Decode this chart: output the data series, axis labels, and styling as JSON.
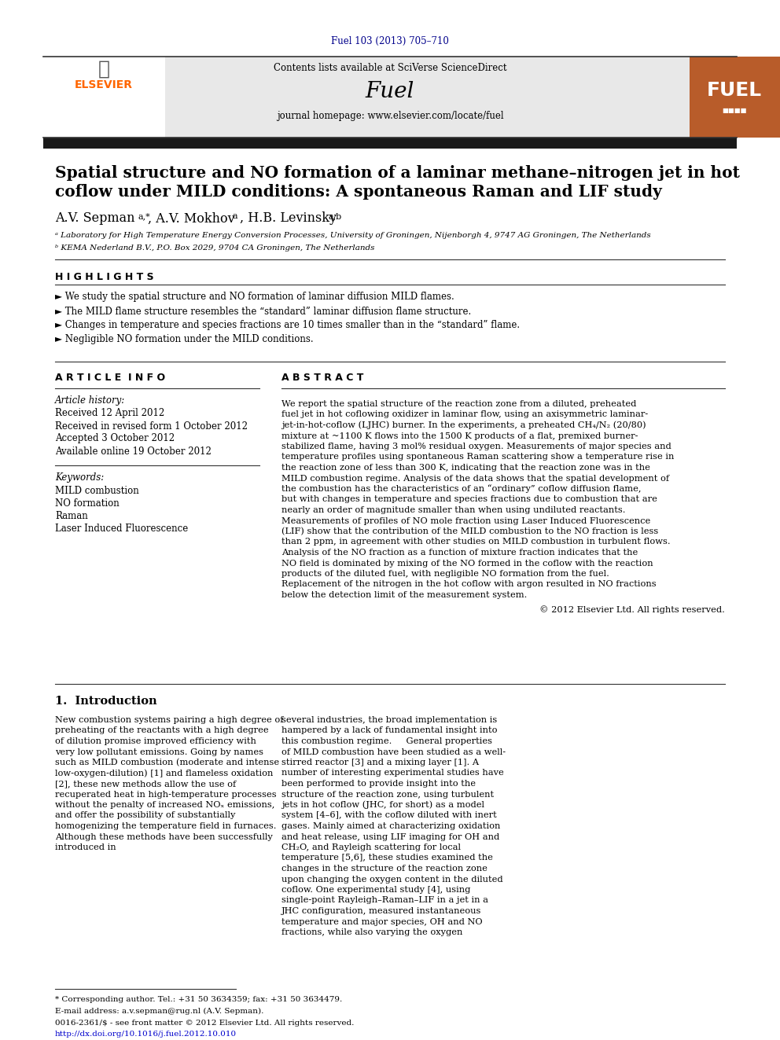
{
  "journal_ref": "Fuel 103 (2013) 705–710",
  "journal_ref_color": "#00008B",
  "header_bg": "#E8E8E8",
  "header_border_color": "#333333",
  "elsevier_color": "#FF6600",
  "fuel_journal": "Fuel",
  "contents_text": "Contents lists available at ",
  "sciverse_text": "SciVerse ScienceDirect",
  "sciverse_color": "#0000CC",
  "homepage_text": "journal homepage: www.elsevier.com/locate/fuel",
  "thick_bar_color": "#1A1A1A",
  "title": "Spatial structure and NO formation of a laminar methane–nitrogen jet in hot\ncoflow under MILD conditions: A spontaneous Raman and LIF study",
  "authors": "A.V. Sepman",
  "author_superscripts": "a,*",
  "author2": ", A.V. Mokhov",
  "author2_sup": "a",
  "author3": ", H.B. Levinsky",
  "author3_sup": "a,b",
  "affil1": "ᵃ Laboratory for High Temperature Energy Conversion Processes, University of Groningen, Nijenborgh 4, 9747 AG Groningen, The Netherlands",
  "affil2": "ᵇ KEMA Nederland B.V., P.O. Box 2029, 9704 CA Groningen, The Netherlands",
  "highlights_label": "H I G H L I G H T S",
  "highlights": [
    "We study the spatial structure and NO formation of laminar diffusion MILD flames.",
    "The MILD flame structure resembles the “standard” laminar diffusion flame structure.",
    "Changes in temperature and species fractions are 10 times smaller than in the “standard” flame.",
    "Negligible NO formation under the MILD conditions."
  ],
  "article_info_label": "A R T I C L E  I N F O",
  "abstract_label": "A B S T R A C T",
  "article_history_label": "Article history:",
  "received": "Received 12 April 2012",
  "revised": "Received in revised form 1 October 2012",
  "accepted": "Accepted 3 October 2012",
  "available": "Available online 19 October 2012",
  "keywords_label": "Keywords:",
  "keywords": [
    "MILD combustion",
    "NO formation",
    "Raman",
    "Laser Induced Fluorescence"
  ],
  "abstract_text": "We report the spatial structure of the reaction zone from a diluted, preheated fuel jet in hot coflowing oxidizer in laminar flow, using an axisymmetric laminar-jet-in-hot-coflow (LJHC) burner. In the experiments, a preheated CH₄/N₂ (20/80) mixture at ~1100 K flows into the 1500 K products of a flat, premixed burner-stabilized flame, having 3 mol% residual oxygen. Measurements of major species and temperature profiles using spontaneous Raman scattering show a temperature rise in the reaction zone of less than 300 K, indicating that the reaction zone was in the MILD combustion regime. Analysis of the data shows that the spatial development of the combustion has the characteristics of an “ordinary” coflow diffusion flame, but with changes in temperature and species fractions due to combustion that are nearly an order of magnitude smaller than when using undiluted reactants. Measurements of profiles of NO mole fraction using Laser Induced Fluorescence (LIF) show that the contribution of the MILD combustion to the NO fraction is less than 2 ppm, in agreement with other studies on MILD combustion in turbulent flows. Analysis of the NO fraction as a function of mixture fraction indicates that the NO field is dominated by mixing of the NO formed in the coflow with the reaction products of the diluted fuel, with negligible NO formation from the fuel. Replacement of the nitrogen in the hot coflow with argon resulted in NO fractions below the detection limit of the measurement system.",
  "copyright": "© 2012 Elsevier Ltd. All rights reserved.",
  "intro_label": "1.  Introduction",
  "intro_col1": "New combustion systems pairing a high degree of preheating of the reactants with a high degree of dilution promise improved efficiency with very low pollutant emissions. Going by names such as MILD combustion (moderate and intense low-oxygen-dilution) [1] and flameless oxidation [2], these new methods allow the use of recuperated heat in high-temperature processes without the penalty of increased NOₓ emissions, and offer the possibility of substantially homogenizing the temperature field in furnaces. Although these methods have been successfully introduced in",
  "intro_col2": "several industries, the broad implementation is hampered by a lack of fundamental insight into this combustion regime.\n    General properties of MILD combustion have been studied as a well-stirred reactor [3] and a mixing layer [1]. A number of interesting experimental studies have been performed to provide insight into the structure of the reaction zone, using turbulent jets in hot coflow (JHC, for short) as a model system [4–6], with the coflow diluted with inert gases. Mainly aimed at characterizing oxidation and heat release, using LIF imaging for OH and CH₂O, and Rayleigh scattering for local temperature [5,6], these studies examined the changes in the structure of the reaction zone upon changing the oxygen content in the diluted coflow. One experimental study [4], using single-point Rayleigh–Raman–LIF in a jet in a JHC configuration, measured instantaneous temperature and major species, OH and NO fractions, while also varying the oxygen",
  "footnote_star": "* Corresponding author. Tel.: +31 50 3634359; fax: +31 50 3634479.",
  "footnote_email": "E-mail address: a.v.sepman@rug.nl (A.V. Sepman).",
  "issn": "0016-2361/$ - see front matter © 2012 Elsevier Ltd. All rights reserved.",
  "doi": "http://dx.doi.org/10.1016/j.fuel.2012.10.010",
  "doi_color": "#0000CC",
  "bg_color": "#FFFFFF",
  "text_color": "#000000"
}
